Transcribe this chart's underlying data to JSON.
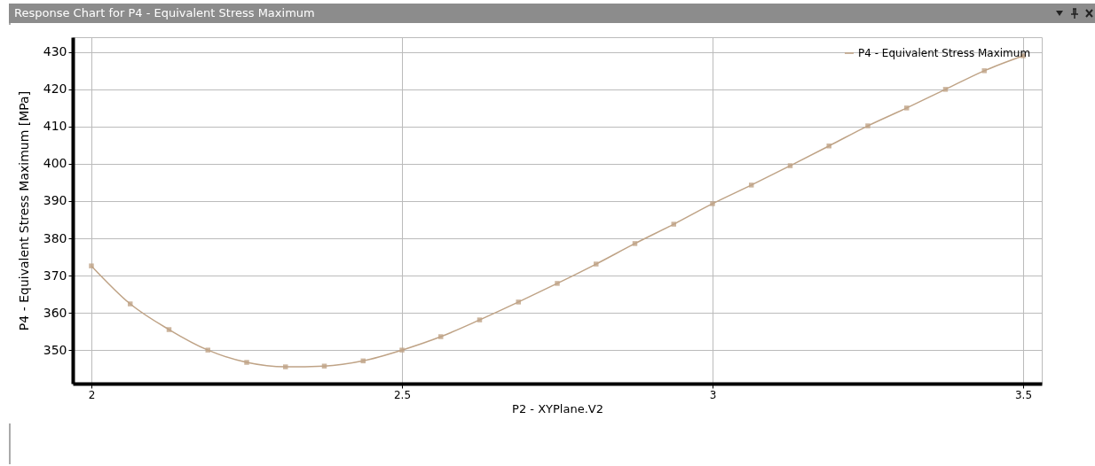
{
  "chart_data": {
    "type": "line",
    "title": "Response Chart for P4 - Equivalent Stress Maximum",
    "xlabel": "P2 - XYPlane.V2",
    "ylabel": "P4 - Equivalent Stress Maximum  [MPa]",
    "x": [
      2,
      2.0625,
      2.125,
      2.1875,
      2.25,
      2.3125,
      2.375,
      2.4375,
      2.5,
      2.5625,
      2.625,
      2.6875,
      2.75,
      2.8125,
      2.875,
      2.9375,
      3,
      3.0625,
      3.125,
      3.1875,
      3.25,
      3.3125,
      3.375,
      3.4375,
      3.5
    ],
    "series": [
      {
        "name": "P4 - Equivalent Stress Maximum",
        "color": "#bfa386",
        "values": [
          372.6,
          362.4,
          355.5,
          350,
          346.7,
          345.5,
          345.7,
          347.1,
          350,
          353.6,
          358.1,
          362.9,
          367.9,
          373.1,
          378.6,
          383.8,
          389.3,
          394.3,
          399.5,
          404.8,
          410.2,
          415,
          420,
          425,
          429
        ]
      }
    ],
    "xlim": [
      1.97,
      3.53
    ],
    "xticks": [
      2,
      2.5,
      3,
      3.5
    ],
    "ylim": [
      341,
      434
    ],
    "yticks": [
      350,
      360,
      370,
      380,
      390,
      400,
      410,
      420,
      430
    ],
    "grid": true,
    "legend": "top right",
    "marker": "square",
    "line_style": "solid"
  }
}
